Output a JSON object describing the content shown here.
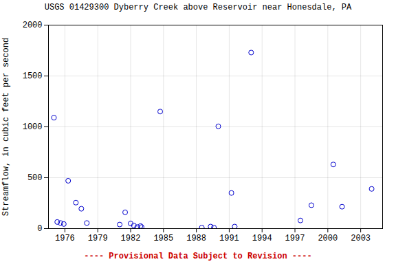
{
  "chart_data": {
    "type": "scatter",
    "title": "USGS 01429300 Dyberry Creek above Reservoir near Honesdale, PA",
    "ylabel": "Streamflow, in cubic feet per second",
    "annotations": [
      {
        "text": "---- Provisional Data Subject to Revision ----",
        "color": "#cc0000"
      }
    ],
    "x": [
      1975,
      1975.3,
      1975.6,
      1975.9,
      1976.3,
      1977,
      1977.5,
      1978,
      1981,
      1981.5,
      1982,
      1982.3,
      1982.6,
      1982.9,
      1983,
      1984.7,
      1988.5,
      1989.3,
      1989.6,
      1990,
      1991.2,
      1991.5,
      1993,
      1997.5,
      1998.5,
      2000.5,
      2001.3,
      2004
    ],
    "values": [
      1090,
      65,
      55,
      45,
      470,
      255,
      195,
      55,
      40,
      160,
      50,
      30,
      15,
      25,
      15,
      1150,
      10,
      20,
      10,
      1005,
      350,
      20,
      1730,
      80,
      230,
      630,
      215,
      390
    ],
    "color": "#0000cc",
    "marker": "open_circle",
    "xlim": [
      1974.5,
      2005
    ],
    "ylim": [
      0,
      2000
    ],
    "xticks": [
      1976,
      1979,
      1982,
      1985,
      1988,
      1991,
      1994,
      1997,
      2000,
      2003
    ],
    "yticks": [
      0,
      500,
      1000,
      1500,
      2000
    ],
    "grid": true
  }
}
